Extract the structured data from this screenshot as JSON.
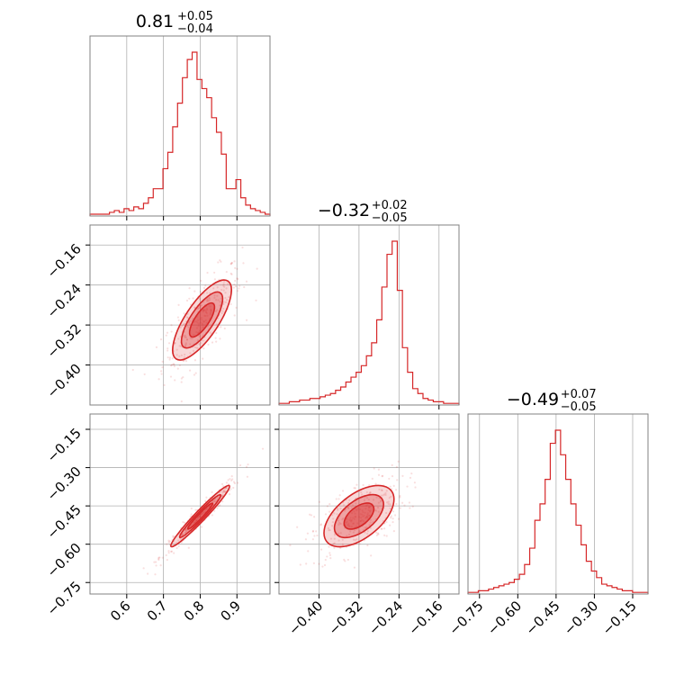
{
  "chart_data": {
    "type": "corner",
    "color": "#d62728",
    "parameters": [
      {
        "title": {
          "median": "0.81",
          "plus": "+0.05",
          "minus": "−0.04"
        },
        "range": [
          0.5,
          0.99
        ],
        "ticks": [
          0.6,
          0.7,
          0.8,
          0.9
        ],
        "tick_labels": [
          "0.6",
          "0.7",
          "0.8",
          "0.9"
        ]
      },
      {
        "title": {
          "median": "−0.32",
          "plus": "+0.02",
          "minus": "−0.05"
        },
        "range": [
          -0.48,
          -0.12
        ],
        "ticks": [
          -0.4,
          -0.32,
          -0.24,
          -0.16
        ],
        "tick_labels": [
          "−0.40",
          "−0.32",
          "−0.24",
          "−0.16"
        ]
      },
      {
        "title": {
          "median": "−0.49",
          "plus": "+0.07",
          "minus": "−0.05"
        },
        "range": [
          -0.795,
          -0.09
        ],
        "ticks": [
          -0.75,
          -0.6,
          -0.45,
          -0.3,
          -0.15
        ],
        "tick_labels": [
          "−0.75",
          "−0.60",
          "−0.45",
          "−0.30",
          "−0.15"
        ]
      }
    ],
    "histograms": [
      {
        "param": 0,
        "values": [
          0.01,
          0.01,
          0.01,
          0.01,
          0.02,
          0.03,
          0.02,
          0.04,
          0.03,
          0.05,
          0.04,
          0.07,
          0.1,
          0.15,
          0.15,
          0.26,
          0.35,
          0.49,
          0.62,
          0.76,
          0.86,
          0.9,
          0.75,
          0.7,
          0.65,
          0.54,
          0.46,
          0.34,
          0.15,
          0.15,
          0.2,
          0.1,
          0.06,
          0.04,
          0.03,
          0.02,
          0.01
        ]
      },
      {
        "param": 1,
        "values": [
          0.01,
          0.01,
          0.02,
          0.02,
          0.03,
          0.03,
          0.04,
          0.04,
          0.05,
          0.06,
          0.07,
          0.09,
          0.11,
          0.14,
          0.17,
          0.2,
          0.24,
          0.3,
          0.38,
          0.52,
          0.72,
          0.92,
          1.0,
          0.7,
          0.35,
          0.2,
          0.1,
          0.07,
          0.04,
          0.03,
          0.02,
          0.02,
          0.01,
          0.01,
          0.01
        ]
      },
      {
        "param": 2,
        "values": [
          0.01,
          0.01,
          0.02,
          0.02,
          0.03,
          0.04,
          0.05,
          0.06,
          0.07,
          0.09,
          0.12,
          0.18,
          0.28,
          0.45,
          0.55,
          0.7,
          0.92,
          1.0,
          0.85,
          0.7,
          0.55,
          0.42,
          0.3,
          0.2,
          0.14,
          0.1,
          0.06,
          0.05,
          0.04,
          0.03,
          0.02,
          0.02,
          0.01,
          0.01,
          0.01
        ]
      }
    ],
    "pairs": [
      {
        "x_param": 0,
        "y_param": 1,
        "center": [
          0.805,
          -0.31
        ],
        "spread": [
          0.04,
          0.04
        ],
        "corr": 0.75
      },
      {
        "x_param": 0,
        "y_param": 2,
        "center": [
          0.8,
          -0.49
        ],
        "spread": [
          0.04,
          0.06
        ],
        "corr": 0.97
      },
      {
        "x_param": 1,
        "y_param": 2,
        "center": [
          -0.32,
          -0.49
        ],
        "spread": [
          0.035,
          0.06
        ],
        "corr": 0.55
      }
    ],
    "grid": true,
    "xlabel": "",
    "ylabel": ""
  }
}
